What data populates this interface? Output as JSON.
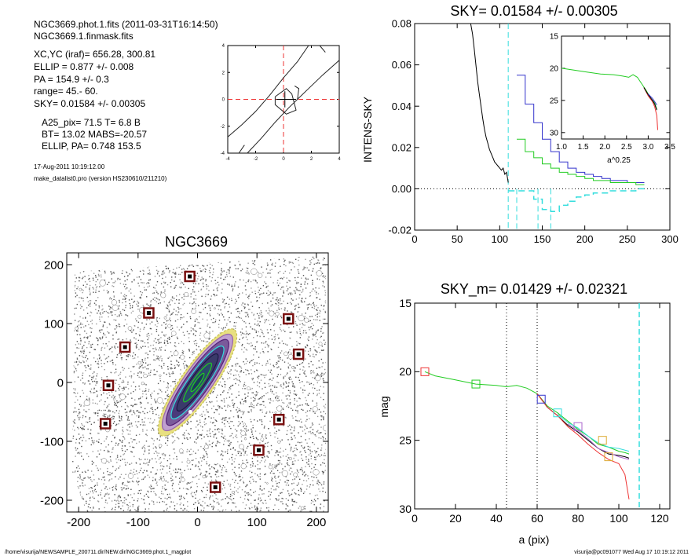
{
  "info": {
    "lines": [
      "NGC3669.phot.1.fits  (2011-03-31T16:14:50)",
      "NGC3669.1.finmask.fits",
      "XC,YC (iraf)=   656.28, 300.81",
      "ELLIP = 0.877 +/- 0.008",
      "PA    = 154.9 +/-   0.3",
      "range=   45.-   60.",
      "SKY= 0.01584 +/- 0.00305",
      "A25_pix= 71.5   T= 6.8  B",
      "BT=  13.02   MABS=-20.57",
      "ELLIP, PA= 0.748   153.5"
    ],
    "date": "17-Aug-2011 10:19:12.00",
    "program": "make_datalist0.pro (version HS230610/211210)"
  },
  "footer": {
    "left": "/home/visurija/NEWSAMPLE_200711.dir/NEW.dir/NGC3669.phot.1_magplot",
    "right": "visurija@pc091077  Wed Aug 17 10:19:12 2011"
  },
  "colors": {
    "black": "#000000",
    "blue": "#3333cc",
    "green": "#22cc22",
    "cyan": "#33dddd",
    "red": "#ee3333",
    "purple": "#aa66cc",
    "orange": "#ddaa33",
    "maroon": "#7a1010",
    "gray": "#888888"
  },
  "chart_data": [
    {
      "id": "center-contour",
      "type": "line",
      "xlim": [
        -4,
        4
      ],
      "ylim": [
        -4,
        4
      ],
      "x_ticks": [
        "-4",
        "-2",
        "0",
        "2",
        "4"
      ],
      "y_ticks": [
        "-4",
        "-2",
        "0",
        "2",
        "4"
      ],
      "contours": [
        [
          [
            -4,
            -2.8
          ],
          [
            -3,
            -1.9
          ],
          [
            -2,
            -0.9
          ],
          [
            -1,
            0.3
          ],
          [
            0,
            1.6
          ],
          [
            1,
            2.8
          ],
          [
            1.8,
            4
          ]
        ],
        [
          [
            -2.6,
            -4
          ],
          [
            -1.6,
            -2.9
          ],
          [
            -0.6,
            -1.7
          ],
          [
            0.4,
            -0.6
          ],
          [
            1.6,
            0.6
          ],
          [
            2.8,
            1.8
          ],
          [
            4,
            2.9
          ]
        ],
        [
          [
            -0.6,
            0.2
          ],
          [
            0.2,
            0.8
          ],
          [
            0.6,
            0.4
          ],
          [
            0.9,
            -0.8
          ],
          [
            0.2,
            -1.1
          ],
          [
            -0.6,
            -0.4
          ],
          [
            -0.6,
            0.2
          ]
        ],
        [
          [
            0.8,
            1.0
          ],
          [
            1.1,
            0.8
          ],
          [
            1.0,
            0.0
          ]
        ],
        [
          [
            -3.2,
            -4
          ],
          [
            -2.8,
            -3.4
          ]
        ],
        [
          [
            2.6,
            4
          ],
          [
            3.0,
            3.5
          ]
        ]
      ],
      "center": [
        0,
        0
      ]
    },
    {
      "id": "sky-profile",
      "type": "line",
      "title": "SKY= 0.01584 +/- 0.00305",
      "xlabel": "",
      "ylabel": "INTENS-SKY",
      "xlim": [
        0,
        300
      ],
      "ylim": [
        -0.02,
        0.08
      ],
      "x_ticks": [
        "0",
        "50",
        "100",
        "150",
        "200",
        "250",
        "300"
      ],
      "y_ticks": [
        "-0.02",
        "0.00",
        "0.02",
        "0.04",
        "0.06",
        "0.08"
      ],
      "sky_line": 0.0,
      "vlines": [
        110,
        120,
        145,
        160
      ],
      "series": [
        {
          "color": "black",
          "step": false,
          "x": [
            65,
            68,
            70,
            72,
            74,
            76,
            78,
            80,
            82,
            84,
            86,
            88,
            90,
            92,
            94,
            96,
            98,
            100,
            102,
            104,
            106,
            108,
            110
          ],
          "y": [
            0.082,
            0.075,
            0.068,
            0.06,
            0.052,
            0.046,
            0.04,
            0.034,
            0.029,
            0.025,
            0.022,
            0.019,
            0.017,
            0.015,
            0.013,
            0.012,
            0.011,
            0.01,
            0.009,
            0.01,
            0.007,
            0.008,
            0.003
          ]
        },
        {
          "color": "blue",
          "step": true,
          "x": [
            120,
            130,
            140,
            150,
            160,
            170,
            180,
            190,
            200,
            210,
            220,
            230,
            240,
            250,
            260,
            270
          ],
          "y": [
            0.055,
            0.041,
            0.032,
            0.024,
            0.018,
            0.013,
            0.01,
            0.008,
            0.007,
            0.006,
            0.005,
            0.004,
            0.004,
            0.003,
            0.003,
            0.003
          ]
        },
        {
          "color": "green",
          "step": true,
          "x": [
            120,
            130,
            140,
            150,
            160,
            170,
            180,
            190,
            200,
            210,
            220,
            230,
            240,
            250,
            260,
            270
          ],
          "y": [
            0.024,
            0.018,
            0.015,
            0.012,
            0.01,
            0.008,
            0.007,
            0.006,
            0.005,
            0.004,
            0.004,
            0.003,
            0.003,
            0.003,
            0.002,
            0.002
          ]
        },
        {
          "color": "cyan",
          "step": true,
          "x": [
            110,
            120,
            140,
            150,
            160,
            170,
            180,
            190,
            200,
            210,
            220,
            230,
            240,
            250,
            260,
            270
          ],
          "y": [
            -0.001,
            -0.001,
            -0.005,
            -0.01,
            -0.011,
            -0.008,
            -0.006,
            -0.004,
            -0.003,
            -0.002,
            -0.002,
            -0.001,
            -0.001,
            -0.001,
            0.0,
            0.0
          ]
        }
      ],
      "inset": {
        "xlabel": "a^0.25",
        "xlim": [
          1.0,
          3.5
        ],
        "ylim": [
          15,
          31
        ],
        "x_ticks": [
          "1.0",
          "1.5",
          "2.0",
          "2.5",
          "3.0",
          "3.5"
        ],
        "y_ticks": [
          "15",
          "20",
          "25",
          "30"
        ],
        "series": [
          {
            "color": "green",
            "x": [
              1.0,
              1.3,
              1.6,
              1.9,
              2.2,
              2.4,
              2.55,
              2.65,
              2.75,
              2.85,
              2.95,
              3.05,
              3.15,
              3.2
            ],
            "y": [
              20.0,
              20.3,
              20.6,
              20.9,
              21.0,
              21.2,
              21.4,
              21.0,
              21.4,
              22.4,
              23.4,
              24.6,
              25.4,
              26.4
            ]
          },
          {
            "color": "red",
            "x": [
              2.9,
              3.0,
              3.1,
              3.15,
              3.2,
              3.22
            ],
            "y": [
              23.0,
              24.3,
              25.2,
              26.0,
              27.4,
              29.6
            ]
          },
          {
            "color": "black",
            "x": [
              2.9,
              3.0,
              3.1,
              3.15,
              3.2
            ],
            "y": [
              23.0,
              24.1,
              25.0,
              25.6,
              26.5
            ]
          },
          {
            "color": "blue",
            "x": [
              3.0,
              3.1,
              3.15,
              3.2
            ],
            "y": [
              24.0,
              24.7,
              25.2,
              25.7
            ]
          }
        ]
      }
    },
    {
      "id": "galaxy-image",
      "type": "scatter",
      "title": "NGC3669",
      "xlim": [
        -220,
        220
      ],
      "ylim": [
        -220,
        220
      ],
      "x_ticks": [
        "-200",
        "-100",
        "0",
        "100",
        "200"
      ],
      "y_ticks": [
        "-200",
        "-100",
        "0",
        "100",
        "200"
      ],
      "masked_sources": [
        [
          -13,
          180
        ],
        [
          -82,
          118
        ],
        [
          -122,
          60
        ],
        [
          -150,
          -5
        ],
        [
          -155,
          -70
        ],
        [
          153,
          108
        ],
        [
          170,
          48
        ],
        [
          137,
          -63
        ],
        [
          103,
          -115
        ],
        [
          30,
          -178
        ]
      ]
    },
    {
      "id": "magnitude-profile",
      "type": "line",
      "title": "SKY_m=  0.01429 +/- 0.02321",
      "xlabel": "a (pix)",
      "ylabel": "mag",
      "xlim": [
        0,
        125
      ],
      "ylim": [
        15,
        30
      ],
      "x_ticks": [
        "0",
        "20",
        "40",
        "60",
        "80",
        "100",
        "120"
      ],
      "y_ticks": [
        "15",
        "20",
        "25",
        "30"
      ],
      "vlines_dotted": [
        45,
        60
      ],
      "vline_dashed": 110,
      "series": [
        {
          "color": "green",
          "x": [
            5,
            10,
            20,
            30,
            40,
            45,
            50,
            55,
            60,
            65,
            70,
            75,
            80,
            85,
            90,
            95,
            100,
            103,
            105
          ],
          "y": [
            20.0,
            20.3,
            20.6,
            20.9,
            21.0,
            21.1,
            21.0,
            21.2,
            21.6,
            22.5,
            23.0,
            23.6,
            24.2,
            24.7,
            25.3,
            25.5,
            25.8,
            25.9,
            26.0
          ]
        },
        {
          "color": "black",
          "x": [
            60,
            65,
            70,
            75,
            80,
            85,
            90,
            95,
            100,
            103,
            105
          ],
          "y": [
            21.6,
            22.6,
            23.2,
            23.9,
            24.4,
            25.0,
            25.6,
            26.0,
            26.1,
            26.2,
            26.3
          ]
        },
        {
          "color": "red",
          "x": [
            60,
            65,
            70,
            75,
            80,
            85,
            90,
            95,
            100,
            103,
            105
          ],
          "y": [
            21.6,
            22.6,
            23.2,
            24.0,
            24.6,
            25.3,
            25.9,
            26.4,
            26.7,
            27.5,
            29.3
          ]
        },
        {
          "color": "purple",
          "x": [
            75,
            80,
            85,
            90,
            95,
            100,
            105
          ],
          "y": [
            23.8,
            24.3,
            24.9,
            25.6,
            25.9,
            26.2,
            26.4
          ]
        },
        {
          "color": "cyan",
          "x": [
            70,
            75,
            80,
            85,
            90,
            95,
            100,
            105
          ],
          "y": [
            23.1,
            23.7,
            24.1,
            24.7,
            25.2,
            25.5,
            25.6,
            25.8
          ]
        }
      ],
      "markers": [
        {
          "color": "red",
          "x": 5,
          "y": 20.0
        },
        {
          "color": "green",
          "x": 30,
          "y": 20.9
        },
        {
          "color": "blue",
          "x": 62,
          "y": 22.0
        },
        {
          "color": "cyan",
          "x": 70,
          "y": 23.0
        },
        {
          "color": "purple",
          "x": 80,
          "y": 24.0
        },
        {
          "color": "orange",
          "x": 92,
          "y": 25.0
        },
        {
          "color": "orange",
          "x": 95,
          "y": 26.2
        }
      ]
    }
  ]
}
